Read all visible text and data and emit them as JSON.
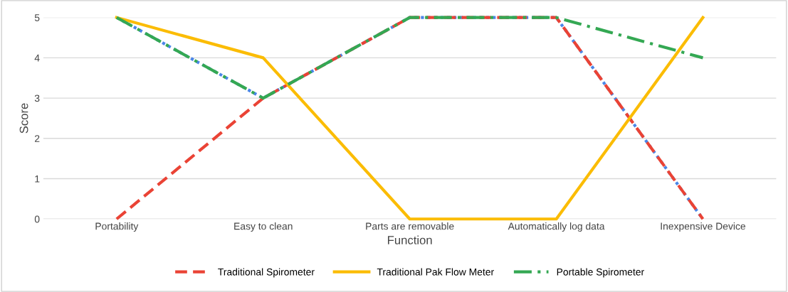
{
  "chart_data": {
    "type": "line",
    "xlabel": "Function",
    "ylabel": "Score",
    "categories": [
      "Portability",
      "Easy to clean",
      "Parts are removable",
      "Automatically log data",
      "Inexpensive Device"
    ],
    "series": [
      {
        "color": "#4a86e8",
        "values": [
          5,
          3,
          5,
          5,
          0
        ],
        "line_style": "dotted"
      },
      {
        "name": "Traditional Spirometer",
        "color": "#ea4335",
        "values": [
          0,
          3,
          5,
          5,
          0
        ],
        "line_style": "dashed"
      },
      {
        "name": "Traditional Pak Flow Meter",
        "color": "#fbbc04",
        "values": [
          5,
          4,
          0,
          0,
          5
        ],
        "line_style": "solid"
      },
      {
        "name": "Portable Spirometer",
        "color": "#34a853",
        "values": [
          5,
          3,
          5,
          5,
          4
        ],
        "line_style": "dashdot"
      }
    ],
    "ylim": [
      0,
      5
    ],
    "yticks": [
      0,
      1,
      2,
      3,
      4,
      5
    ],
    "grid": "y",
    "legend": "bottom",
    "marker": "none"
  }
}
